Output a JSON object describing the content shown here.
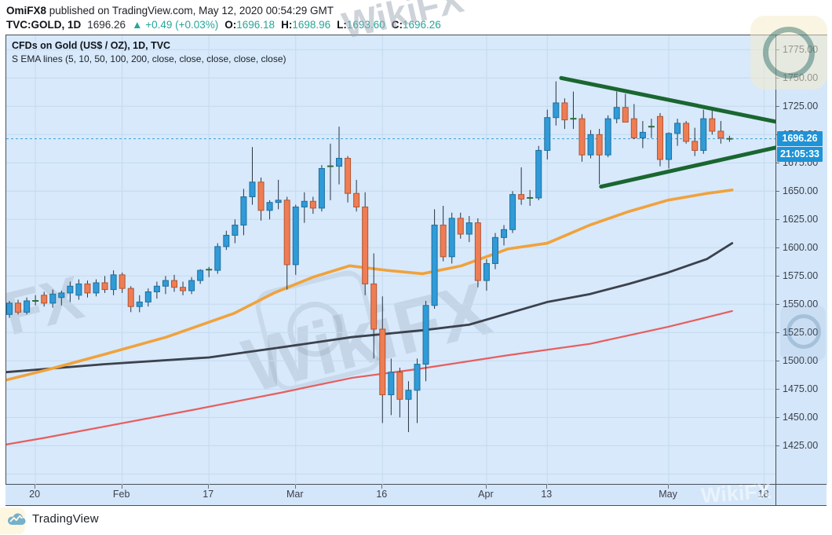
{
  "header": {
    "author": "OmiFX8",
    "published": " published on TradingView.com, May 12, 2020 00:54:29 GMT",
    "symbol": "TVC:GOLD, 1D",
    "last_price": "1696.26",
    "change": "▲ +0.49 (+0.03%)",
    "ohlc": {
      "o_label": "O:",
      "o": "1696.18",
      "h_label": "H:",
      "h": "1698.96",
      "l_label": "L:",
      "l": "1693.60",
      "c_label": "C:",
      "c": "1696.26"
    }
  },
  "legend": {
    "title": "CFDs on Gold (US$ / OZ), 1D, TVC",
    "indicator": "S EMA lines (5, 10, 50, 100, 200, close, close, close, close, close)"
  },
  "price_axis": {
    "labels": [
      "1775.00",
      "1750.00",
      "1725.00",
      "1700.00",
      "1675.00",
      "1650.00",
      "1625.00",
      "1600.00",
      "1575.00",
      "1550.00",
      "1525.00",
      "1500.00",
      "1475.00",
      "1450.00",
      "1425.00"
    ],
    "last_price_badge": "1696.26",
    "countdown_badge": "21:05:33"
  },
  "time_axis": {
    "labels": [
      {
        "text": "20",
        "index": 3
      },
      {
        "text": "Feb",
        "index": 13
      },
      {
        "text": "17",
        "index": 23
      },
      {
        "text": "Mar",
        "index": 33
      },
      {
        "text": "16",
        "index": 43
      },
      {
        "text": "Apr",
        "index": 55
      },
      {
        "text": "13",
        "index": 62
      },
      {
        "text": "May",
        "index": 76
      },
      {
        "text": "18",
        "index": 87
      }
    ]
  },
  "footer": {
    "brand": "TradingView"
  },
  "watermarks": {
    "header_text": "WikiFX",
    "center_text": "WikiFX",
    "left_text": "WikiFX",
    "bottom_right_text": "WikiFX"
  },
  "colors": {
    "up_candle": "#2f9bd8",
    "up_border": "#1f6f9d",
    "down_candle": "#ef7d54",
    "down_border": "#b35531",
    "doji_dash": "#2e6b3d",
    "wick": "#2a3340",
    "ema50": "#f0a23c",
    "ema100": "#3c414c",
    "ema200": "#e85d5d",
    "triangle": "#1a6630",
    "price_line": "#3aa0dc",
    "grid": "#c5daee",
    "badge": "#1f93d6",
    "accent_teal": "#26a69a"
  },
  "chart_data": {
    "type": "candlestick",
    "title": "CFDs on Gold (US$ / OZ), 1D, TVC",
    "interval": "1D",
    "ylim": [
      1390.5,
      1787.7
    ],
    "xlim_index": [
      -0.36,
      88.3
    ],
    "grid_step": 25,
    "grid_price_range": [
      1400,
      1775
    ],
    "price_line": 1696.26,
    "candles_format": [
      "date",
      "open",
      "high",
      "low",
      "close"
    ],
    "candles": [
      [
        "Jan 15",
        1541,
        1553,
        1538,
        1551
      ],
      [
        "Jan 16",
        1551,
        1554,
        1541,
        1543
      ],
      [
        "Jan 17",
        1543,
        1556,
        1541,
        1553
      ],
      [
        "Jan 20",
        1552,
        1558,
        1549,
        1553
      ],
      [
        "Jan 21",
        1558,
        1561,
        1548,
        1551
      ],
      [
        "Jan 22",
        1551,
        1563,
        1547,
        1559
      ],
      [
        "Jan 23",
        1556,
        1562,
        1549,
        1560
      ],
      [
        "Jan 24",
        1560,
        1570,
        1552,
        1566
      ],
      [
        "Jan 27",
        1558,
        1572,
        1554,
        1568
      ],
      [
        "Jan 28",
        1568,
        1571,
        1556,
        1560
      ],
      [
        "Jan 29",
        1560,
        1572,
        1557,
        1569
      ],
      [
        "Jan 30",
        1569,
        1575,
        1560,
        1563
      ],
      [
        "Jan 31",
        1563,
        1580,
        1558,
        1576
      ],
      [
        "Feb 3",
        1576,
        1578,
        1560,
        1564
      ],
      [
        "Feb 4",
        1564,
        1566,
        1543,
        1548
      ],
      [
        "Feb 5",
        1548,
        1558,
        1543,
        1552
      ],
      [
        "Feb 6",
        1552,
        1564,
        1548,
        1561
      ],
      [
        "Feb 7",
        1561,
        1570,
        1555,
        1566
      ],
      [
        "Feb 10",
        1566,
        1575,
        1559,
        1571
      ],
      [
        "Feb 11",
        1571,
        1576,
        1561,
        1565
      ],
      [
        "Feb 12",
        1565,
        1570,
        1558,
        1562
      ],
      [
        "Feb 13",
        1562,
        1574,
        1559,
        1571
      ],
      [
        "Feb 14",
        1571,
        1581,
        1568,
        1580
      ],
      [
        "Feb 17",
        1580,
        1583,
        1574,
        1580.6
      ],
      [
        "Feb 18",
        1580,
        1604,
        1577,
        1601
      ],
      [
        "Feb 19",
        1601,
        1615,
        1598,
        1611
      ],
      [
        "Feb 20",
        1611,
        1625,
        1604,
        1620
      ],
      [
        "Feb 21",
        1620,
        1652,
        1611,
        1645
      ],
      [
        "Feb 24",
        1645,
        1689,
        1638,
        1658
      ],
      [
        "Feb 25",
        1658,
        1662,
        1624,
        1633
      ],
      [
        "Feb 26",
        1633,
        1642,
        1625,
        1640
      ],
      [
        "Feb 27",
        1640,
        1660,
        1634,
        1642
      ],
      [
        "Feb 28",
        1642,
        1645,
        1563,
        1585
      ],
      [
        "Mar 2",
        1585,
        1638,
        1576,
        1636
      ],
      [
        "Mar 3",
        1636,
        1649,
        1622,
        1641
      ],
      [
        "Mar 4",
        1641,
        1645,
        1630,
        1635
      ],
      [
        "Mar 5",
        1635,
        1673,
        1632,
        1670
      ],
      [
        "Mar 6",
        1671,
        1692,
        1642,
        1672
      ],
      [
        "Mar 9",
        1672,
        1707,
        1656,
        1679
      ],
      [
        "Mar 10",
        1679,
        1681,
        1640,
        1648
      ],
      [
        "Mar 11",
        1648,
        1660,
        1632,
        1636
      ],
      [
        "Mar 12",
        1636,
        1649,
        1558,
        1568
      ],
      [
        "Mar 13",
        1568,
        1595,
        1502,
        1528
      ],
      [
        "Mar 16",
        1528,
        1557,
        1445,
        1470
      ],
      [
        "Mar 17",
        1470,
        1502,
        1452,
        1490
      ],
      [
        "Mar 18",
        1490,
        1494,
        1450,
        1466
      ],
      [
        "Mar 19",
        1466,
        1482,
        1437,
        1474
      ],
      [
        "Mar 20",
        1474,
        1502,
        1445,
        1497
      ],
      [
        "Mar 23",
        1497,
        1553,
        1482,
        1549
      ],
      [
        "Mar 24",
        1549,
        1634,
        1546,
        1620
      ],
      [
        "Mar 25",
        1620,
        1637,
        1588,
        1592
      ],
      [
        "Mar 26",
        1592,
        1631,
        1586,
        1626
      ],
      [
        "Mar 27",
        1626,
        1631,
        1608,
        1612
      ],
      [
        "Mar 30",
        1612,
        1628,
        1605,
        1622
      ],
      [
        "Mar 31",
        1622,
        1626,
        1565,
        1571
      ],
      [
        "Apr 1",
        1571,
        1590,
        1562,
        1586
      ],
      [
        "Apr 2",
        1586,
        1613,
        1581,
        1609
      ],
      [
        "Apr 3",
        1609,
        1620,
        1602,
        1616
      ],
      [
        "Apr 6",
        1616,
        1650,
        1613,
        1647
      ],
      [
        "Apr 7",
        1647,
        1671,
        1638,
        1643
      ],
      [
        "Apr 8",
        1643,
        1651,
        1637,
        1644
      ],
      [
        "Apr 9",
        1644,
        1690,
        1642,
        1686
      ],
      [
        "Apr 13",
        1686,
        1722,
        1678,
        1715
      ],
      [
        "Apr 14",
        1715,
        1747,
        1708,
        1728
      ],
      [
        "Apr 15",
        1728,
        1732,
        1705,
        1713
      ],
      [
        "Apr 16",
        1713,
        1738,
        1705,
        1714
      ],
      [
        "Apr 17",
        1714,
        1718,
        1676,
        1682
      ],
      [
        "Apr 20",
        1682,
        1704,
        1679,
        1700
      ],
      [
        "Apr 21",
        1700,
        1705,
        1656,
        1682
      ],
      [
        "Apr 22",
        1682,
        1717,
        1680,
        1714
      ],
      [
        "Apr 23",
        1714,
        1738,
        1710,
        1724
      ],
      [
        "Apr 24",
        1724,
        1736,
        1713,
        1711
      ],
      [
        "Apr 27",
        1714,
        1727,
        1696,
        1697
      ],
      [
        "Apr 28",
        1697,
        1712,
        1688,
        1702
      ],
      [
        "Apr 29",
        1706,
        1714,
        1697,
        1707
      ],
      [
        "Apr 30",
        1716,
        1719,
        1672,
        1678
      ],
      [
        "May 1",
        1678,
        1702,
        1670,
        1701
      ],
      [
        "May 4",
        1701,
        1714,
        1690,
        1710
      ],
      [
        "May 5",
        1710,
        1712,
        1692,
        1694
      ],
      [
        "May 6",
        1694,
        1706,
        1681,
        1686
      ],
      [
        "May 7",
        1686,
        1722,
        1683,
        1714
      ],
      [
        "May 8",
        1714,
        1721,
        1700,
        1703
      ],
      [
        "May 11",
        1703,
        1712,
        1692,
        1697
      ],
      [
        "May 12",
        1696.18,
        1698.96,
        1693.6,
        1696.26
      ]
    ],
    "emas": {
      "ema50": [
        [
          -0.4,
          1483
        ],
        [
          4.3,
          1492
        ],
        [
          10.6,
          1505
        ],
        [
          18.1,
          1521
        ],
        [
          25.9,
          1542
        ],
        [
          30.5,
          1560
        ],
        [
          35,
          1574
        ],
        [
          39.2,
          1584
        ],
        [
          43.5,
          1580
        ],
        [
          47.6,
          1577
        ],
        [
          52.1,
          1584
        ],
        [
          57.5,
          1599
        ],
        [
          62,
          1604
        ],
        [
          66.9,
          1620
        ],
        [
          71.4,
          1632
        ],
        [
          75.9,
          1642
        ],
        [
          80.4,
          1648
        ],
        [
          83.3,
          1651
        ]
      ],
      "ema100": [
        [
          -0.4,
          1490
        ],
        [
          10.9,
          1497
        ],
        [
          23,
          1503
        ],
        [
          31.4,
          1512
        ],
        [
          39.5,
          1521
        ],
        [
          47.6,
          1527
        ],
        [
          53,
          1532
        ],
        [
          57.5,
          1542
        ],
        [
          62,
          1552
        ],
        [
          66.9,
          1559
        ],
        [
          71.4,
          1568
        ],
        [
          75.9,
          1578
        ],
        [
          80.4,
          1590
        ],
        [
          83.3,
          1604
        ]
      ],
      "ema200": [
        [
          -0.4,
          1426
        ],
        [
          4.1,
          1432
        ],
        [
          12.4,
          1444
        ],
        [
          21.4,
          1457
        ],
        [
          31.4,
          1472
        ],
        [
          39.5,
          1485
        ],
        [
          47.3,
          1493
        ],
        [
          57.5,
          1505
        ],
        [
          66.9,
          1515
        ],
        [
          75.9,
          1530
        ],
        [
          83.3,
          1544
        ]
      ]
    },
    "triangle": {
      "upper": [
        [
          63.6,
          1750
        ],
        [
          88.6,
          1711
        ]
      ],
      "lower": [
        [
          68.2,
          1654
        ],
        [
          88.6,
          1689
        ]
      ]
    }
  }
}
